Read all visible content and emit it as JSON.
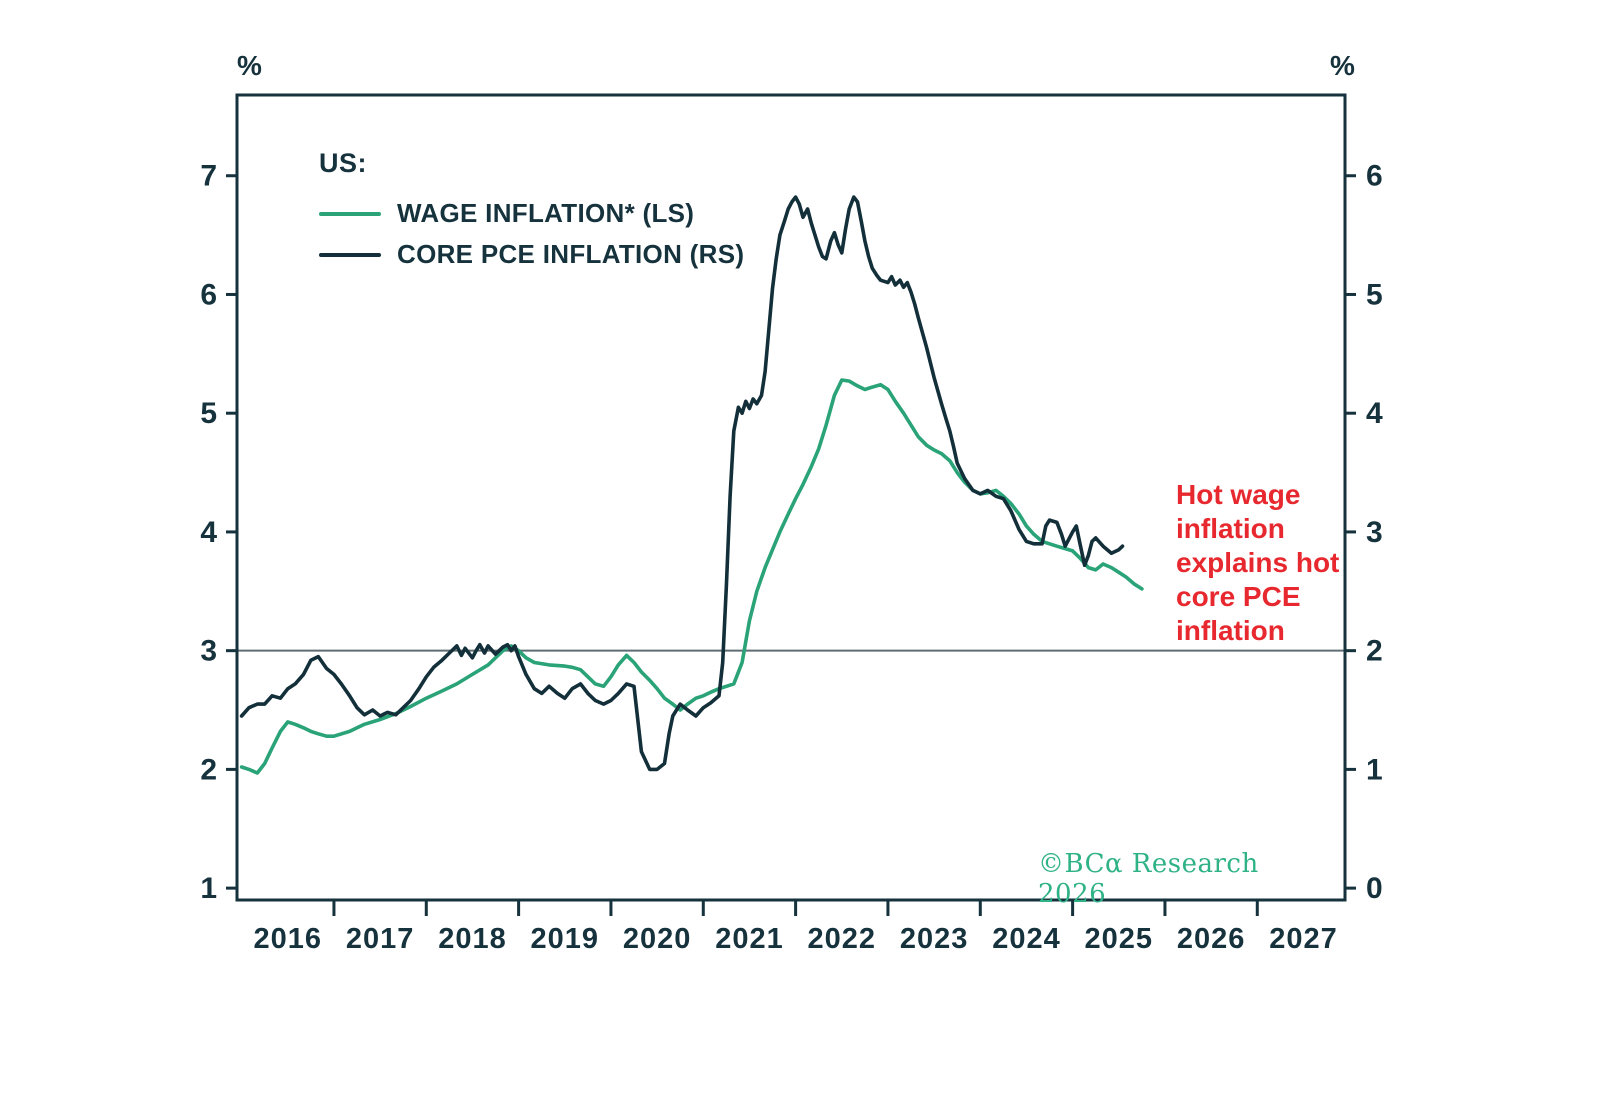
{
  "legend": {
    "title": "US:",
    "items": [
      {
        "label": "WAGE INFLATION* (LS)"
      },
      {
        "label": "CORE PCE INFLATION (RS)"
      }
    ]
  },
  "annotation": {
    "text": "Hot wage\ninflation\nexplains hot\ncore PCE\ninflation",
    "color": "#e7282e"
  },
  "copyright": {
    "text": "©BCα Research 2026",
    "color": "#2fb286"
  },
  "chart_data": {
    "type": "line",
    "title": "",
    "x_domain": [
      2015.95,
      2027.95
    ],
    "x_axis": {
      "band_labels": [
        2016,
        2017,
        2018,
        2019,
        2020,
        2021,
        2022,
        2023,
        2024,
        2025,
        2026,
        2027
      ],
      "boundary_ticks": [
        2017,
        2018,
        2019,
        2020,
        2021,
        2022,
        2023,
        2024,
        2025,
        2026,
        2027
      ]
    },
    "left_axis": {
      "label": "%",
      "ticks": [
        1,
        2,
        3,
        4,
        5,
        6,
        7
      ],
      "range": [
        0.9,
        7.68
      ]
    },
    "right_axis": {
      "label": "%",
      "ticks": [
        0,
        1,
        2,
        3,
        4,
        5,
        6
      ],
      "range": [
        -0.1,
        6.68
      ]
    },
    "reference_line": {
      "left_value": 3,
      "right_value": 2
    },
    "colors": {
      "axis": "#15323d",
      "reference": "#5f6d73"
    },
    "grid": false,
    "legend_position": "top-left",
    "series": [
      {
        "id": "wage-inflation",
        "name": "WAGE INFLATION* (LS)",
        "axis": "left",
        "color": "#29a377",
        "points": [
          [
            2016.0,
            2.02
          ],
          [
            2016.08,
            2.0
          ],
          [
            2016.17,
            1.97
          ],
          [
            2016.25,
            2.05
          ],
          [
            2016.33,
            2.18
          ],
          [
            2016.42,
            2.32
          ],
          [
            2016.5,
            2.4
          ],
          [
            2016.58,
            2.38
          ],
          [
            2016.67,
            2.35
          ],
          [
            2016.75,
            2.32
          ],
          [
            2016.83,
            2.3
          ],
          [
            2016.92,
            2.28
          ],
          [
            2017.0,
            2.28
          ],
          [
            2017.17,
            2.32
          ],
          [
            2017.33,
            2.38
          ],
          [
            2017.5,
            2.42
          ],
          [
            2017.67,
            2.47
          ],
          [
            2017.83,
            2.53
          ],
          [
            2018.0,
            2.6
          ],
          [
            2018.17,
            2.66
          ],
          [
            2018.33,
            2.72
          ],
          [
            2018.5,
            2.8
          ],
          [
            2018.67,
            2.88
          ],
          [
            2018.75,
            2.94
          ],
          [
            2018.83,
            3.0
          ],
          [
            2018.92,
            3.04
          ],
          [
            2019.0,
            3.0
          ],
          [
            2019.08,
            2.94
          ],
          [
            2019.17,
            2.9
          ],
          [
            2019.33,
            2.88
          ],
          [
            2019.5,
            2.87
          ],
          [
            2019.58,
            2.86
          ],
          [
            2019.67,
            2.84
          ],
          [
            2019.75,
            2.78
          ],
          [
            2019.83,
            2.72
          ],
          [
            2019.92,
            2.7
          ],
          [
            2020.0,
            2.78
          ],
          [
            2020.08,
            2.88
          ],
          [
            2020.17,
            2.96
          ],
          [
            2020.25,
            2.9
          ],
          [
            2020.33,
            2.82
          ],
          [
            2020.42,
            2.75
          ],
          [
            2020.5,
            2.68
          ],
          [
            2020.58,
            2.6
          ],
          [
            2020.67,
            2.55
          ],
          [
            2020.75,
            2.5
          ],
          [
            2020.83,
            2.55
          ],
          [
            2020.92,
            2.6
          ],
          [
            2021.0,
            2.62
          ],
          [
            2021.08,
            2.65
          ],
          [
            2021.17,
            2.68
          ],
          [
            2021.25,
            2.7
          ],
          [
            2021.33,
            2.72
          ],
          [
            2021.42,
            2.9
          ],
          [
            2021.5,
            3.25
          ],
          [
            2021.58,
            3.5
          ],
          [
            2021.67,
            3.7
          ],
          [
            2021.75,
            3.85
          ],
          [
            2021.83,
            4.0
          ],
          [
            2021.92,
            4.15
          ],
          [
            2022.0,
            4.28
          ],
          [
            2022.08,
            4.4
          ],
          [
            2022.17,
            4.55
          ],
          [
            2022.25,
            4.7
          ],
          [
            2022.33,
            4.9
          ],
          [
            2022.42,
            5.15
          ],
          [
            2022.5,
            5.28
          ],
          [
            2022.58,
            5.27
          ],
          [
            2022.67,
            5.23
          ],
          [
            2022.75,
            5.2
          ],
          [
            2022.83,
            5.22
          ],
          [
            2022.92,
            5.24
          ],
          [
            2023.0,
            5.2
          ],
          [
            2023.08,
            5.1
          ],
          [
            2023.17,
            5.0
          ],
          [
            2023.25,
            4.9
          ],
          [
            2023.33,
            4.8
          ],
          [
            2023.42,
            4.73
          ],
          [
            2023.5,
            4.69
          ],
          [
            2023.58,
            4.66
          ],
          [
            2023.67,
            4.6
          ],
          [
            2023.75,
            4.5
          ],
          [
            2023.83,
            4.42
          ],
          [
            2023.92,
            4.35
          ],
          [
            2024.0,
            4.32
          ],
          [
            2024.08,
            4.33
          ],
          [
            2024.17,
            4.35
          ],
          [
            2024.25,
            4.3
          ],
          [
            2024.33,
            4.24
          ],
          [
            2024.42,
            4.15
          ],
          [
            2024.5,
            4.05
          ],
          [
            2024.58,
            3.98
          ],
          [
            2024.67,
            3.92
          ],
          [
            2024.75,
            3.9
          ],
          [
            2024.83,
            3.88
          ],
          [
            2024.92,
            3.86
          ],
          [
            2025.0,
            3.84
          ],
          [
            2025.08,
            3.78
          ],
          [
            2025.17,
            3.7
          ],
          [
            2025.25,
            3.68
          ],
          [
            2025.33,
            3.73
          ],
          [
            2025.42,
            3.7
          ],
          [
            2025.5,
            3.66
          ],
          [
            2025.58,
            3.62
          ],
          [
            2025.67,
            3.56
          ],
          [
            2025.75,
            3.52
          ]
        ]
      },
      {
        "id": "core-pce-inflation",
        "name": "CORE PCE INFLATION (RS)",
        "axis": "right",
        "color": "#132f3a",
        "points": [
          [
            2016.0,
            1.45
          ],
          [
            2016.08,
            1.52
          ],
          [
            2016.17,
            1.55
          ],
          [
            2016.25,
            1.55
          ],
          [
            2016.33,
            1.62
          ],
          [
            2016.42,
            1.6
          ],
          [
            2016.5,
            1.68
          ],
          [
            2016.58,
            1.72
          ],
          [
            2016.67,
            1.8
          ],
          [
            2016.75,
            1.92
          ],
          [
            2016.83,
            1.95
          ],
          [
            2016.92,
            1.85
          ],
          [
            2017.0,
            1.8
          ],
          [
            2017.08,
            1.72
          ],
          [
            2017.17,
            1.62
          ],
          [
            2017.25,
            1.52
          ],
          [
            2017.33,
            1.46
          ],
          [
            2017.42,
            1.5
          ],
          [
            2017.5,
            1.45
          ],
          [
            2017.58,
            1.48
          ],
          [
            2017.67,
            1.46
          ],
          [
            2017.75,
            1.52
          ],
          [
            2017.83,
            1.58
          ],
          [
            2017.92,
            1.68
          ],
          [
            2018.0,
            1.78
          ],
          [
            2018.08,
            1.86
          ],
          [
            2018.17,
            1.92
          ],
          [
            2018.25,
            1.98
          ],
          [
            2018.33,
            2.04
          ],
          [
            2018.38,
            1.96
          ],
          [
            2018.42,
            2.02
          ],
          [
            2018.5,
            1.94
          ],
          [
            2018.54,
            2.0
          ],
          [
            2018.58,
            2.05
          ],
          [
            2018.63,
            1.98
          ],
          [
            2018.67,
            2.04
          ],
          [
            2018.75,
            1.97
          ],
          [
            2018.83,
            2.03
          ],
          [
            2018.88,
            2.05
          ],
          [
            2018.92,
            2.0
          ],
          [
            2018.96,
            2.04
          ],
          [
            2019.0,
            1.95
          ],
          [
            2019.08,
            1.8
          ],
          [
            2019.17,
            1.68
          ],
          [
            2019.25,
            1.64
          ],
          [
            2019.33,
            1.7
          ],
          [
            2019.42,
            1.64
          ],
          [
            2019.5,
            1.6
          ],
          [
            2019.58,
            1.68
          ],
          [
            2019.67,
            1.72
          ],
          [
            2019.75,
            1.64
          ],
          [
            2019.83,
            1.58
          ],
          [
            2019.92,
            1.55
          ],
          [
            2020.0,
            1.58
          ],
          [
            2020.08,
            1.64
          ],
          [
            2020.17,
            1.72
          ],
          [
            2020.25,
            1.7
          ],
          [
            2020.33,
            1.15
          ],
          [
            2020.42,
            1.0
          ],
          [
            2020.5,
            1.0
          ],
          [
            2020.58,
            1.05
          ],
          [
            2020.63,
            1.3
          ],
          [
            2020.67,
            1.45
          ],
          [
            2020.75,
            1.55
          ],
          [
            2020.83,
            1.5
          ],
          [
            2020.92,
            1.45
          ],
          [
            2021.0,
            1.52
          ],
          [
            2021.08,
            1.56
          ],
          [
            2021.17,
            1.62
          ],
          [
            2021.21,
            1.9
          ],
          [
            2021.25,
            2.55
          ],
          [
            2021.29,
            3.3
          ],
          [
            2021.33,
            3.85
          ],
          [
            2021.38,
            4.05
          ],
          [
            2021.42,
            4.0
          ],
          [
            2021.46,
            4.1
          ],
          [
            2021.5,
            4.04
          ],
          [
            2021.54,
            4.12
          ],
          [
            2021.58,
            4.08
          ],
          [
            2021.63,
            4.15
          ],
          [
            2021.67,
            4.35
          ],
          [
            2021.71,
            4.7
          ],
          [
            2021.75,
            5.05
          ],
          [
            2021.79,
            5.3
          ],
          [
            2021.83,
            5.5
          ],
          [
            2021.88,
            5.62
          ],
          [
            2021.92,
            5.72
          ],
          [
            2021.96,
            5.78
          ],
          [
            2022.0,
            5.82
          ],
          [
            2022.04,
            5.76
          ],
          [
            2022.08,
            5.65
          ],
          [
            2022.13,
            5.72
          ],
          [
            2022.17,
            5.6
          ],
          [
            2022.21,
            5.5
          ],
          [
            2022.25,
            5.4
          ],
          [
            2022.29,
            5.32
          ],
          [
            2022.33,
            5.3
          ],
          [
            2022.38,
            5.45
          ],
          [
            2022.42,
            5.52
          ],
          [
            2022.46,
            5.42
          ],
          [
            2022.5,
            5.35
          ],
          [
            2022.54,
            5.55
          ],
          [
            2022.58,
            5.72
          ],
          [
            2022.63,
            5.82
          ],
          [
            2022.67,
            5.78
          ],
          [
            2022.71,
            5.62
          ],
          [
            2022.75,
            5.45
          ],
          [
            2022.79,
            5.32
          ],
          [
            2022.83,
            5.22
          ],
          [
            2022.88,
            5.16
          ],
          [
            2022.92,
            5.12
          ],
          [
            2023.0,
            5.1
          ],
          [
            2023.04,
            5.15
          ],
          [
            2023.08,
            5.08
          ],
          [
            2023.13,
            5.12
          ],
          [
            2023.17,
            5.06
          ],
          [
            2023.21,
            5.1
          ],
          [
            2023.25,
            5.02
          ],
          [
            2023.29,
            4.92
          ],
          [
            2023.33,
            4.8
          ],
          [
            2023.42,
            4.55
          ],
          [
            2023.5,
            4.3
          ],
          [
            2023.58,
            4.08
          ],
          [
            2023.63,
            3.95
          ],
          [
            2023.67,
            3.85
          ],
          [
            2023.71,
            3.72
          ],
          [
            2023.75,
            3.58
          ],
          [
            2023.83,
            3.45
          ],
          [
            2023.92,
            3.35
          ],
          [
            2024.0,
            3.32
          ],
          [
            2024.08,
            3.35
          ],
          [
            2024.17,
            3.3
          ],
          [
            2024.25,
            3.28
          ],
          [
            2024.33,
            3.18
          ],
          [
            2024.42,
            3.02
          ],
          [
            2024.5,
            2.92
          ],
          [
            2024.58,
            2.9
          ],
          [
            2024.67,
            2.9
          ],
          [
            2024.71,
            3.05
          ],
          [
            2024.75,
            3.1
          ],
          [
            2024.83,
            3.08
          ],
          [
            2024.88,
            2.98
          ],
          [
            2024.92,
            2.88
          ],
          [
            2025.0,
            3.0
          ],
          [
            2025.04,
            3.05
          ],
          [
            2025.08,
            2.9
          ],
          [
            2025.13,
            2.72
          ],
          [
            2025.17,
            2.8
          ],
          [
            2025.21,
            2.92
          ],
          [
            2025.25,
            2.95
          ],
          [
            2025.33,
            2.88
          ],
          [
            2025.42,
            2.82
          ],
          [
            2025.5,
            2.85
          ],
          [
            2025.54,
            2.88
          ]
        ]
      }
    ]
  }
}
